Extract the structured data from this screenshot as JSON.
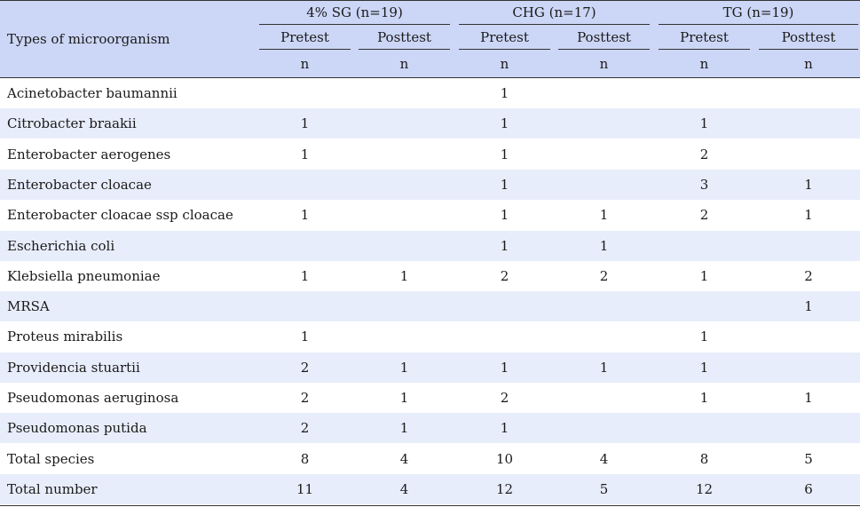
{
  "header": {
    "row_label": "Types of microorganism",
    "groups": [
      "4% SG (n=19)",
      "CHG (n=17)",
      "TG (n=19)"
    ],
    "subheads": [
      "Pretest",
      "Posttest",
      "Pretest",
      "Posttest",
      "Pretest",
      "Posttest"
    ],
    "unit": "n"
  },
  "rows": [
    {
      "name": "Acinetobacter baumannii",
      "v": [
        "",
        "",
        "1",
        "",
        "",
        ""
      ]
    },
    {
      "name": "Citrobacter braakii",
      "v": [
        "1",
        "",
        "1",
        "",
        "1",
        ""
      ]
    },
    {
      "name": "Enterobacter aerogenes",
      "v": [
        "1",
        "",
        "1",
        "",
        "2",
        ""
      ]
    },
    {
      "name": "Enterobacter cloacae",
      "v": [
        "",
        "",
        "1",
        "",
        "3",
        "1"
      ]
    },
    {
      "name": "Enterobacter cloacae ssp cloacae",
      "v": [
        "1",
        "",
        "1",
        "1",
        "2",
        "1"
      ]
    },
    {
      "name": "Escherichia coli",
      "v": [
        "",
        "",
        "1",
        "1",
        "",
        ""
      ]
    },
    {
      "name": "Klebsiella pneumoniae",
      "v": [
        "1",
        "1",
        "2",
        "2",
        "1",
        "2"
      ]
    },
    {
      "name": "MRSA",
      "v": [
        "",
        "",
        "",
        "",
        "",
        "1"
      ]
    },
    {
      "name": "Proteus mirabilis",
      "v": [
        "1",
        "",
        "",
        "",
        "1",
        ""
      ]
    },
    {
      "name": "Providencia stuartii",
      "v": [
        "2",
        "1",
        "1",
        "1",
        "1",
        ""
      ]
    },
    {
      "name": "Pseudomonas aeruginosa",
      "v": [
        "2",
        "1",
        "2",
        "",
        "1",
        "1"
      ]
    },
    {
      "name": "Pseudomonas putida",
      "v": [
        "2",
        "1",
        "1",
        "",
        "",
        ""
      ]
    },
    {
      "name": "Total species",
      "v": [
        "8",
        "4",
        "10",
        "4",
        "8",
        "5"
      ]
    },
    {
      "name": "Total number",
      "v": [
        "11",
        "4",
        "12",
        "5",
        "12",
        "6"
      ]
    }
  ]
}
